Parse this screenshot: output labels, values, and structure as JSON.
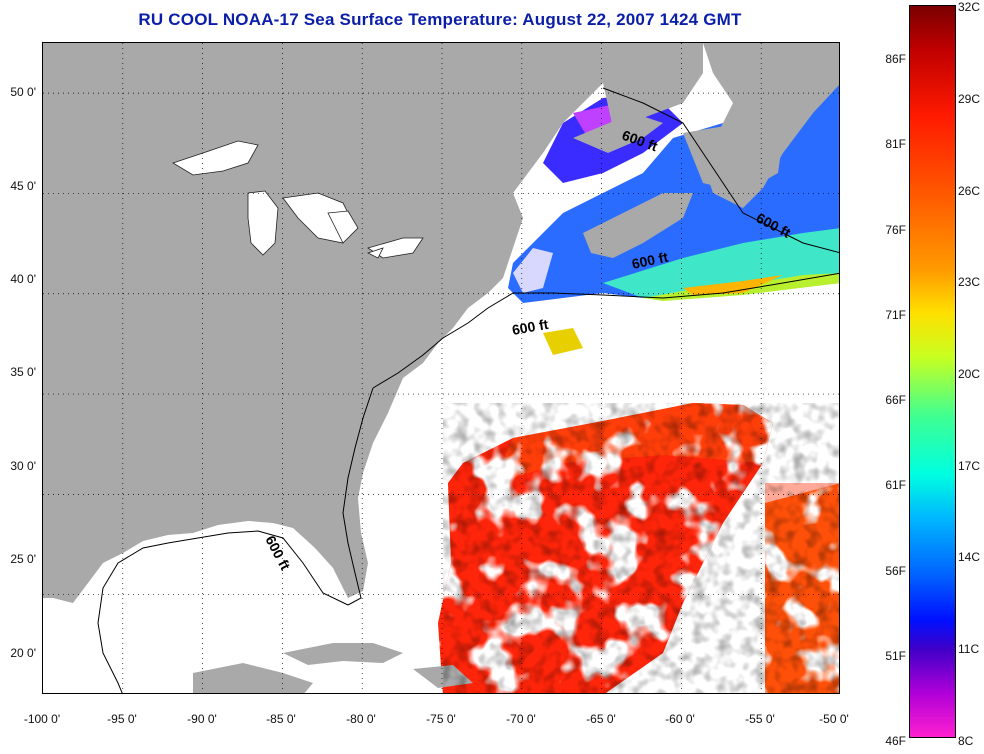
{
  "title": "RU COOL  NOAA-17  Sea Surface Temperature:  August 22, 2007 1424 GMT",
  "map": {
    "lat_ticks": [
      "50 0'",
      "45 0'",
      "40 0'",
      "35 0'",
      "30 0'",
      "25 0'",
      "20 0'"
    ],
    "lon_ticks": [
      "-100 0'",
      "-95 0'",
      "-90 0'",
      "-85 0'",
      "-80 0'",
      "-75 0'",
      "-70 0'",
      "-65 0'",
      "-60 0'",
      "-55 0'",
      "-50 0'"
    ],
    "contour_labels": [
      "600 ft",
      "600 ft",
      "600 ft",
      "600 ft",
      "600 ft"
    ],
    "colors": {
      "land": "#a9a9a9",
      "water_lakes": "#ffffff",
      "grid": "#000000"
    }
  },
  "colorbar": {
    "fahrenheit": [
      "86F",
      "81F",
      "76F",
      "71F",
      "66F",
      "61F",
      "56F",
      "51F",
      "46F"
    ],
    "celsius": [
      "32C",
      "29C",
      "26C",
      "23C",
      "20C",
      "17C",
      "14C",
      "11C",
      "8C"
    ],
    "range_c": [
      8,
      32
    ]
  }
}
